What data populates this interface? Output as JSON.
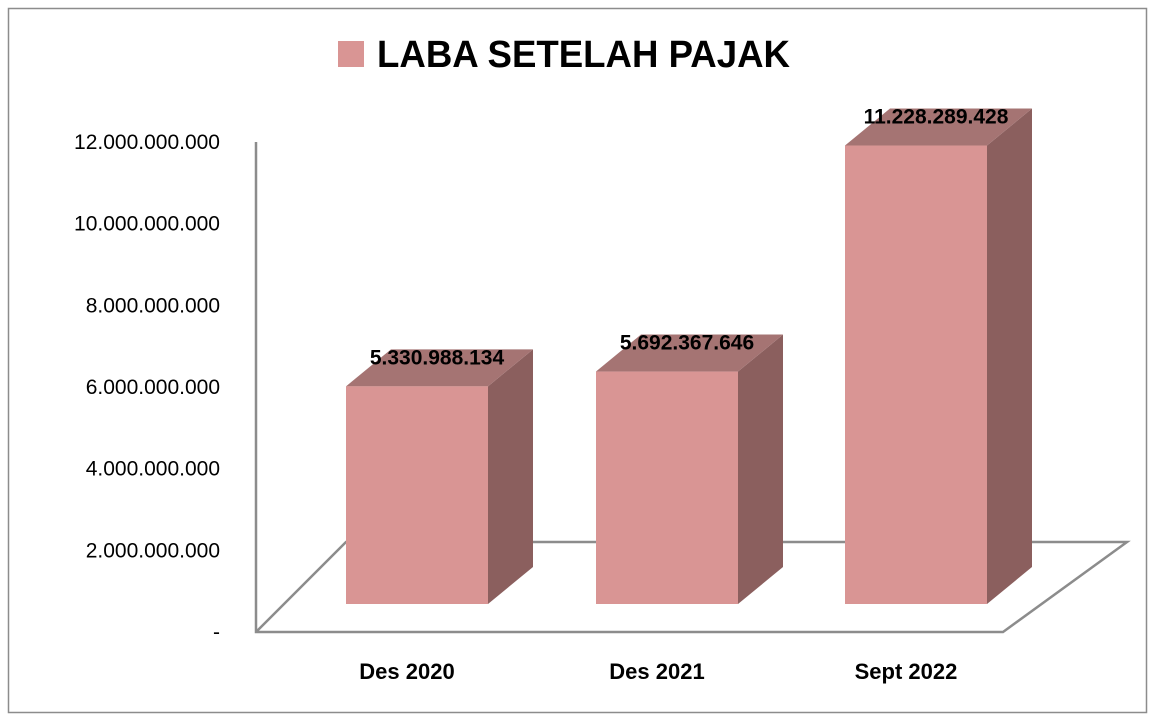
{
  "chart_data": {
    "type": "bar",
    "title": "LABA SETELAH PAJAK",
    "legend": [
      {
        "name": "LABA SETELAH PAJAK",
        "color": "#D99594"
      }
    ],
    "legend_position": "top",
    "categories": [
      "Des 2020",
      "Des 2021",
      "Sept 2022"
    ],
    "values": [
      5330988134,
      5692367646,
      11228289428
    ],
    "data_labels": [
      "5.330.988.134",
      "5.692.367.646",
      "11.228.289.428"
    ],
    "ylim": [
      0,
      12000000000
    ],
    "yticks": [
      0,
      2000000000,
      4000000000,
      6000000000,
      8000000000,
      10000000000,
      12000000000
    ],
    "ytick_labels": [
      "-",
      "2.000.000.000",
      "4.000.000.000",
      "6.000.000.000",
      "8.000.000.000",
      "10.000.000.000",
      "12.000.000.000"
    ],
    "xlabel": "",
    "ylabel": "",
    "grid": false,
    "style": "3d-column",
    "colors": {
      "front": "#D99594",
      "top": "#A57473",
      "side": "#8B5F5E",
      "axis": "#8C8C8C"
    }
  }
}
